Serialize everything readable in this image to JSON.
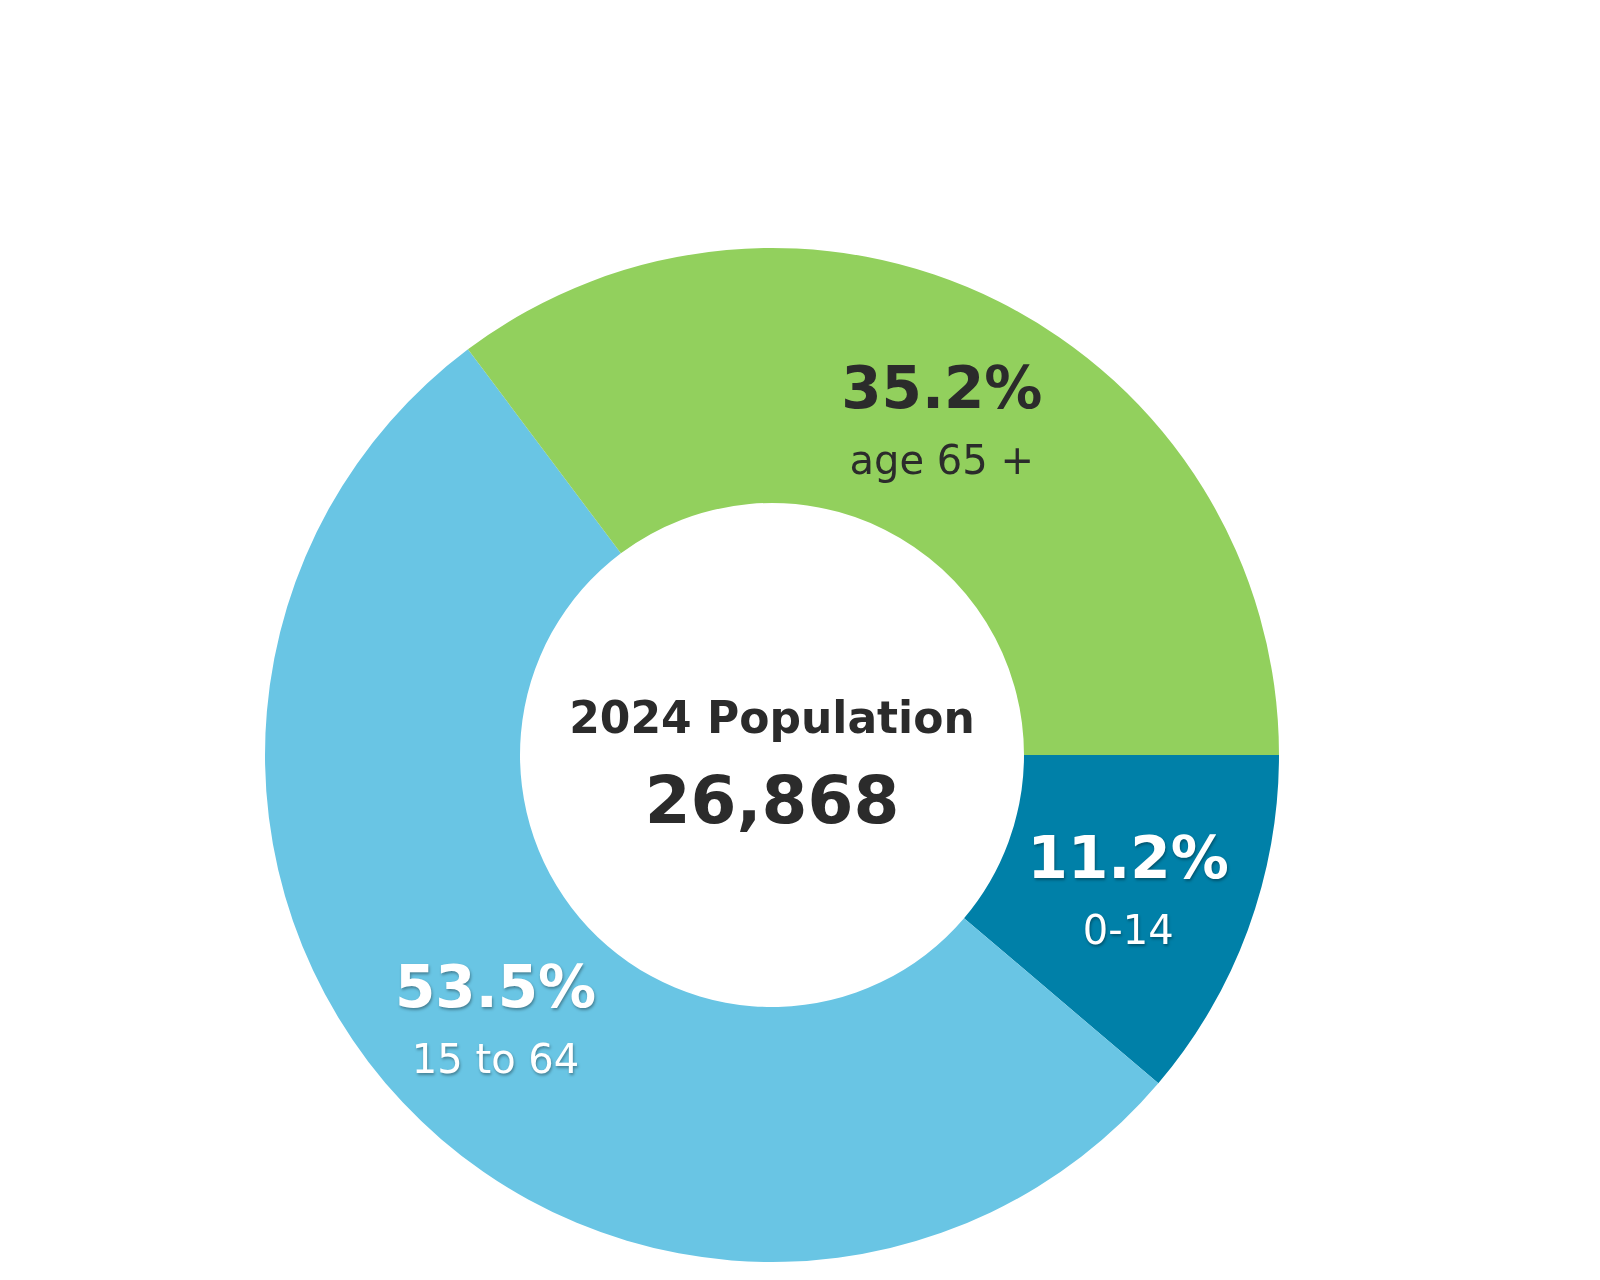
{
  "chart_data": {
    "type": "donut",
    "title": "2024 Population",
    "subtitle": "26,868",
    "categories": [
      "0-14",
      "15 to 64",
      "age 65 +"
    ],
    "values": [
      11.2,
      53.5,
      35.2
    ],
    "colors": [
      "#0080a8",
      "#69c5e4",
      "#92d05d"
    ],
    "value_labels": [
      "11.2%",
      "53.5%",
      "35.2%"
    ]
  }
}
